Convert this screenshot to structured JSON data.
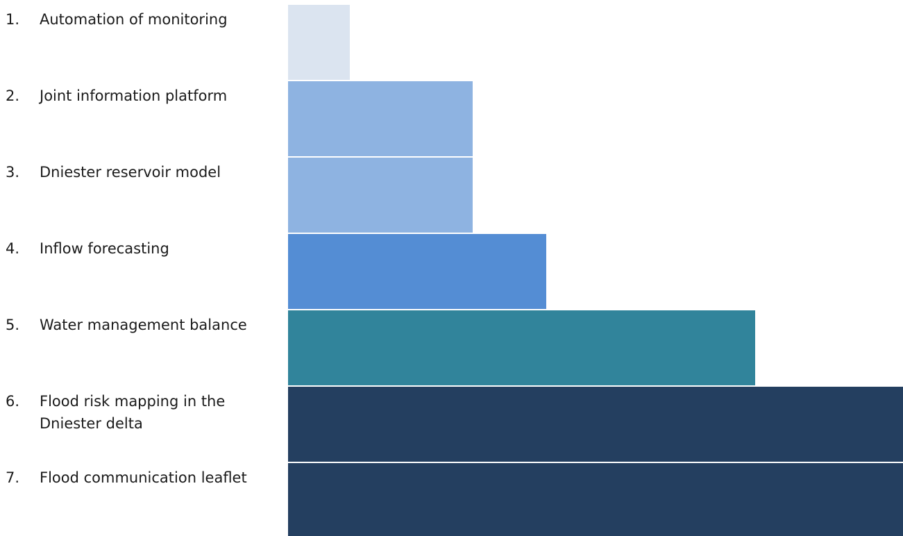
{
  "chart_data": {
    "type": "bar",
    "orientation": "horizontal",
    "categories": [
      {
        "number": "1.",
        "lines": [
          "Automation of monitoring"
        ]
      },
      {
        "number": "2.",
        "lines": [
          "Joint information platform"
        ]
      },
      {
        "number": "3.",
        "lines": [
          "Dniester reservoir model"
        ]
      },
      {
        "number": "4.",
        "lines": [
          "Inflow forecasting"
        ]
      },
      {
        "number": "5.",
        "lines": [
          "Water management balance"
        ]
      },
      {
        "number": "6.",
        "lines": [
          "Flood risk mapping in the",
          "Dniester delta"
        ]
      },
      {
        "number": "7.",
        "lines": [
          "Flood communication leaflet"
        ]
      }
    ],
    "values": [
      0.1,
      0.3,
      0.3,
      0.42,
      0.76,
      1.0,
      1.0
    ],
    "value_scale": "relative length, longest bar = 1.0",
    "colors": [
      "#dbe4f0",
      "#8eb3e1",
      "#8eb3e1",
      "#548dd4",
      "#31849b",
      "#243f60",
      "#243f60"
    ],
    "xlim": [
      0,
      1
    ],
    "grid": false,
    "legend": "none"
  }
}
